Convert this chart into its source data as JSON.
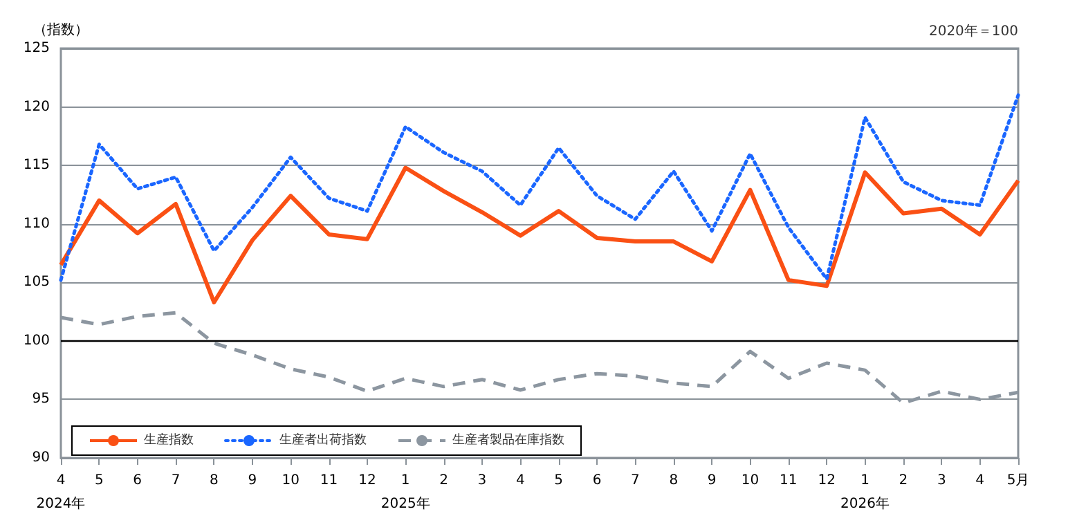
{
  "chart_data": {
    "type": "line",
    "ylabel": "（指数）",
    "annotations": [
      "2020年＝100"
    ],
    "categories": [
      "4\n2024年",
      "5",
      "6",
      "7",
      "8",
      "9",
      "10",
      "11",
      "12",
      "1\n2025年",
      "2",
      "3",
      "4",
      "5",
      "6",
      "7",
      "8",
      "9",
      "10",
      "11",
      "12",
      "1\n2026年",
      "2",
      "3",
      "4",
      "5月"
    ],
    "series": [
      {
        "name": "生産指数",
        "color": "#fa5014",
        "line_style": "solid",
        "values": [
          106.5,
          112,
          109.2,
          111.7,
          103.3,
          108.6,
          112.4,
          109.1,
          108.7,
          114.8,
          112.8,
          111,
          109,
          111.1,
          108.8,
          108.5,
          108.5,
          106.8,
          112.9,
          105.2,
          104.7,
          114.4,
          110.9,
          111.3,
          109.1,
          113.7
        ]
      },
      {
        "name": "生産者出荷指数",
        "color": "#1a66ff",
        "line_style": "dotted",
        "values": [
          105.2,
          116.8,
          113,
          114,
          107.7,
          111.4,
          115.7,
          112.2,
          111.1,
          118.3,
          116.1,
          114.5,
          111.6,
          116.5,
          112.4,
          110.4,
          114.5,
          109.4,
          116,
          109.7,
          105.3,
          119.1,
          113.6,
          112,
          111.6,
          121
        ]
      },
      {
        "name": "生産者製品在庫指数",
        "color": "#8c96a0",
        "line_style": "dashed",
        "values": [
          102,
          101.4,
          102.1,
          102.4,
          99.8,
          98.8,
          97.6,
          96.9,
          95.7,
          96.8,
          96.1,
          96.7,
          95.8,
          96.7,
          97.2,
          97,
          96.4,
          96.1,
          99.1,
          96.8,
          98.1,
          97.5,
          94.7,
          95.7,
          95,
          95.6
        ]
      }
    ],
    "ylim": [
      90,
      125
    ],
    "yticks": [
      90,
      95,
      100,
      105,
      110,
      115,
      120,
      125
    ],
    "ref_lines": [
      {
        "axis": "y",
        "value": 100,
        "color": "#000000"
      }
    ],
    "grid": "y",
    "legend": "bottom left",
    "marker": "none"
  }
}
